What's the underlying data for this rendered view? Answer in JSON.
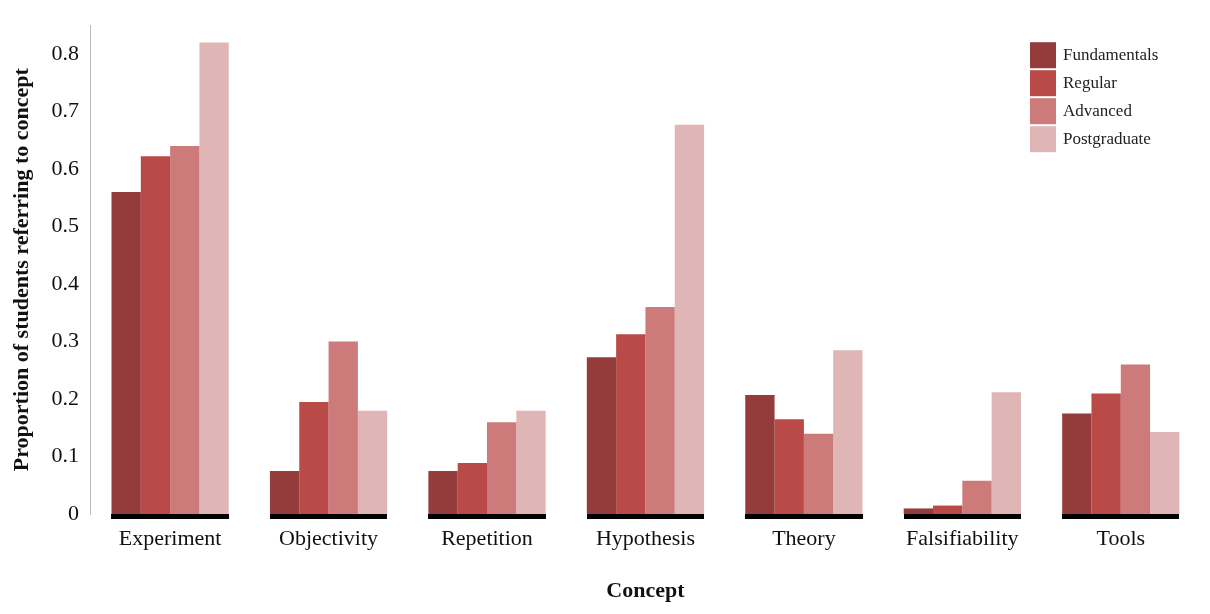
{
  "chart_data": {
    "type": "bar",
    "xlabel": "Concept",
    "ylabel": "Proportion of students referring to concept",
    "categories": [
      "Experiment",
      "Objectivity",
      "Repetition",
      "Hypothesis",
      "Theory",
      "Falsifiability",
      "Tools"
    ],
    "series": [
      {
        "name": "Fundamentals",
        "color": "#943b3b",
        "values": [
          0.56,
          0.075,
          0.075,
          0.273,
          0.207,
          0.01,
          0.175
        ]
      },
      {
        "name": "Regular",
        "color": "#b94a48",
        "values": [
          0.622,
          0.195,
          0.089,
          0.313,
          0.165,
          0.015,
          0.21
        ]
      },
      {
        "name": "Advanced",
        "color": "#cc7b7a",
        "values": [
          0.64,
          0.3,
          0.16,
          0.36,
          0.14,
          0.058,
          0.26
        ]
      },
      {
        "name": "Postgraduate",
        "color": "#e0b5b5",
        "values": [
          0.82,
          0.18,
          0.18,
          0.677,
          0.285,
          0.212,
          0.143
        ]
      }
    ],
    "ylim": [
      0,
      0.85
    ],
    "yticks": [
      0,
      0.1,
      0.2,
      0.3,
      0.4,
      0.5,
      0.6,
      0.7,
      0.8
    ],
    "grid": false,
    "legend": "top right"
  }
}
